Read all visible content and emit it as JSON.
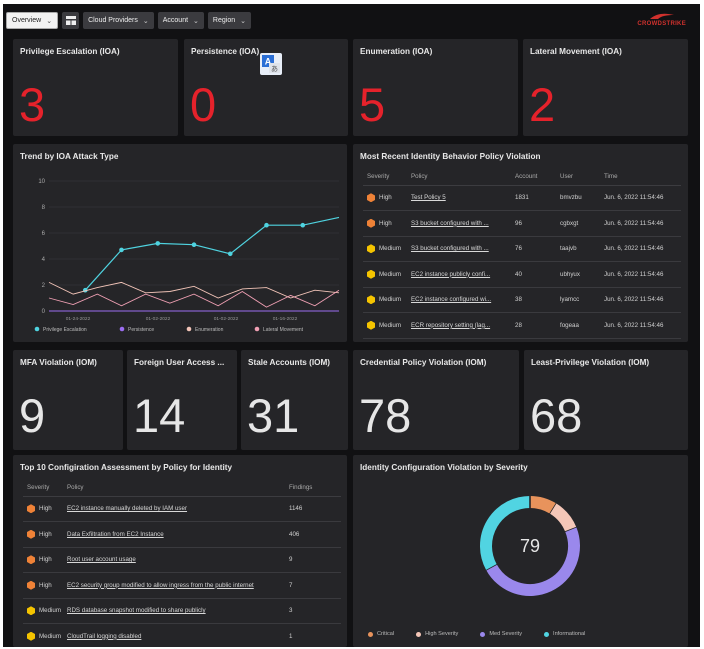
{
  "toolbar": {
    "overview": "Overview",
    "cloud_providers": "Cloud Providers",
    "account": "Account",
    "region": "Region"
  },
  "logo": {
    "text": "CROWDSTRIKE"
  },
  "ioa_tiles": [
    {
      "title": "Privilege Escalation (IOA)",
      "value": "3"
    },
    {
      "title": "Persistence (IOA)",
      "value": "0"
    },
    {
      "title": "Enumeration (IOA)",
      "value": "5"
    },
    {
      "title": "Lateral Movement (IOA)",
      "value": "2"
    }
  ],
  "trend": {
    "title": "Trend by IOA Attack Type"
  },
  "chart_data": {
    "type": "line",
    "title": "Trend by IOA Attack Type",
    "x_tick_labels": [
      "01-24-2022",
      "01-02-2022",
      "01-02-2022",
      "01-16-2022"
    ],
    "y_ticks": [
      0,
      2,
      4,
      6,
      8,
      10
    ],
    "ylim": [
      0,
      10
    ],
    "legend_position": "bottom",
    "series": [
      {
        "name": "Privilege Escalation",
        "color": "#4fd3e0",
        "values": [
          null,
          1.6,
          4.7,
          5.2,
          5.1,
          4.4,
          6.6,
          6.6,
          7.2
        ]
      },
      {
        "name": "Persistence",
        "color": "#9b6df0",
        "values": [
          0,
          0,
          0,
          0,
          0,
          0,
          0,
          0,
          0,
          0,
          0,
          0,
          0,
          0,
          0,
          0,
          0,
          0,
          0,
          0
        ]
      },
      {
        "name": "Enumeration",
        "color": "#f2c4b8",
        "values": [
          2.2,
          1.3,
          1.8,
          2.2,
          1.4,
          1.5,
          1.9,
          1.0,
          1.7,
          1.8,
          1.0,
          1.6,
          1.4
        ]
      },
      {
        "name": "Lateral Movement",
        "color": "#f0a0b4",
        "values": [
          1.0,
          0.5,
          1.3,
          0.4,
          1.3,
          0.6,
          1.3,
          0.4,
          1.5,
          0.3,
          1.2,
          0.4,
          1.6
        ]
      }
    ]
  },
  "recent": {
    "title": "Most Recent Identity Behavior Policy Violation",
    "headers": [
      "Severity",
      "Policy",
      "Account",
      "User",
      "Time"
    ],
    "rows": [
      {
        "sev": "High",
        "policy": "Test Policy 5",
        "account": "1831",
        "user": "bmvzbu",
        "time": "Jun. 6, 2022 11:54:46"
      },
      {
        "sev": "High",
        "policy": "S3 bucket configured with ...",
        "account": "96",
        "user": "cgbxgt",
        "time": "Jun. 6, 2022 11:54:46"
      },
      {
        "sev": "Medium",
        "policy": "S3 bucket configured with ...",
        "account": "76",
        "user": "taajvb",
        "time": "Jun. 6, 2022 11:54:46"
      },
      {
        "sev": "Medium",
        "policy": "EC2 instance publicly confi...",
        "account": "40",
        "user": "ubhyux",
        "time": "Jun. 6, 2022 11:54:46"
      },
      {
        "sev": "Medium",
        "policy": "EC2 instance configured wi...",
        "account": "38",
        "user": "lyamcc",
        "time": "Jun. 6, 2022 11:54:46"
      },
      {
        "sev": "Medium",
        "policy": "ECR repository setting (lag...",
        "account": "28",
        "user": "fogeaa",
        "time": "Jun. 6, 2022 11:54:46"
      }
    ]
  },
  "iom_tiles": [
    {
      "title": "MFA Violation (IOM)",
      "value": "9"
    },
    {
      "title": "Foreign User Access ...",
      "value": "14"
    },
    {
      "title": "Stale Accounts (IOM)",
      "value": "31"
    },
    {
      "title": "Credential Policy Violation (IOM)",
      "value": "78"
    },
    {
      "title": "Least-Privilege Violation (IOM)",
      "value": "68"
    }
  ],
  "config": {
    "title": "Top 10 Configiration Assessment by Policy for Identity",
    "headers": [
      "Severity",
      "Policy",
      "Findings"
    ],
    "rows": [
      {
        "sev": "High",
        "policy": "EC2 instance manually deleted by IAM user",
        "findings": "1146"
      },
      {
        "sev": "High",
        "policy": "Data Exfiltration from EC2 Instance",
        "findings": "406"
      },
      {
        "sev": "High",
        "policy": "Root user account usage",
        "findings": "9"
      },
      {
        "sev": "High",
        "policy": "EC2 security group modified to allow ingress from the public internet",
        "findings": "7"
      },
      {
        "sev": "Medium",
        "policy": "RDS database snapshot modified to share publicly",
        "findings": "3"
      },
      {
        "sev": "Medium",
        "policy": "CloudTrail logging disabled",
        "findings": "1"
      }
    ]
  },
  "donut": {
    "title": "Identity Configuration Violation by Severity",
    "total": "79",
    "segments": [
      {
        "name": "Critical",
        "color": "#e8935c",
        "value": 7
      },
      {
        "name": "High Severity",
        "color": "#f5c7b8",
        "value": 8
      },
      {
        "name": "Med Severity",
        "color": "#9a88ec",
        "value": 38
      },
      {
        "name": "Informational",
        "color": "#51d4e2",
        "value": 26
      }
    ]
  }
}
